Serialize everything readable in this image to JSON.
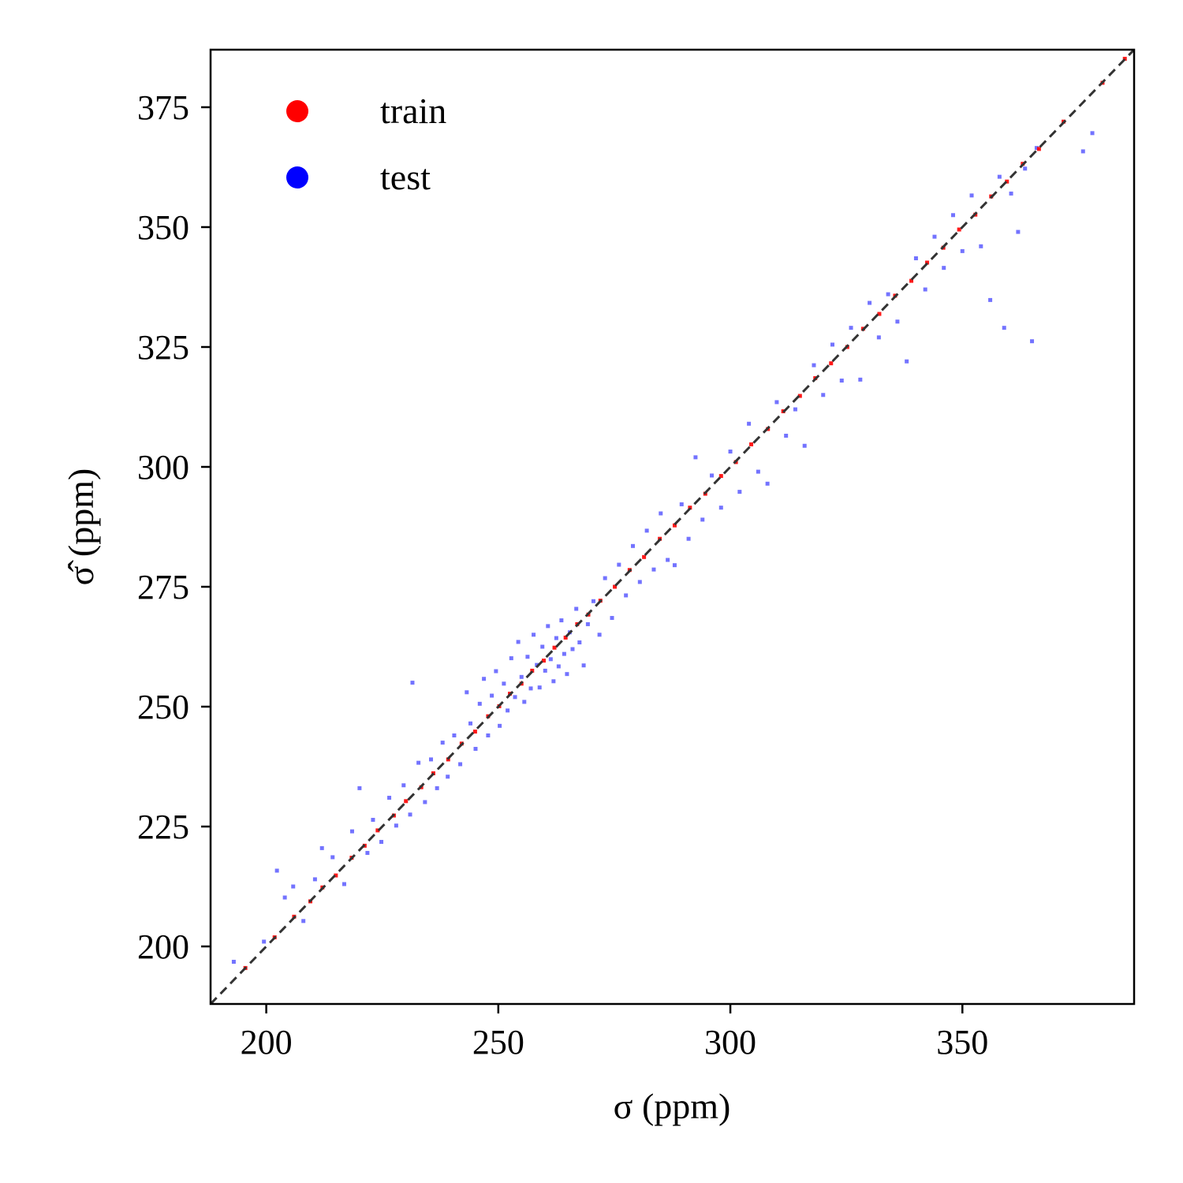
{
  "chart_data": {
    "type": "scatter",
    "title": "",
    "xlabel": "σ  (ppm)",
    "ylabel": "σ̂  (ppm)",
    "xlim": [
      188,
      387
    ],
    "ylim": [
      188,
      387
    ],
    "xticks": [
      200,
      250,
      300,
      350
    ],
    "yticks": [
      200,
      225,
      250,
      275,
      300,
      325,
      350,
      375
    ],
    "grid": false,
    "legend_position": "top-left",
    "reference_line": {
      "style": "dashed",
      "color": "#333333",
      "from": [
        188,
        188
      ],
      "to": [
        387,
        387
      ]
    },
    "series": [
      {
        "name": "train",
        "color": "#ff0000",
        "points": [
          [
            195.5,
            195.5
          ],
          [
            201.8,
            201.9
          ],
          [
            206.0,
            206.2
          ],
          [
            209.5,
            209.4
          ],
          [
            212.1,
            212.3
          ],
          [
            215.0,
            214.8
          ],
          [
            218.4,
            218.5
          ],
          [
            221.2,
            221.0
          ],
          [
            224.0,
            224.2
          ],
          [
            227.5,
            227.3
          ],
          [
            230.1,
            230.3
          ],
          [
            233.4,
            233.2
          ],
          [
            236.0,
            236.1
          ],
          [
            239.2,
            239.0
          ],
          [
            242.1,
            242.3
          ],
          [
            245.0,
            244.8
          ],
          [
            247.8,
            248.0
          ],
          [
            250.2,
            250.1
          ],
          [
            252.5,
            252.7
          ],
          [
            255.0,
            254.8
          ],
          [
            257.3,
            257.5
          ],
          [
            259.8,
            259.6
          ],
          [
            262.1,
            262.3
          ],
          [
            264.5,
            264.4
          ],
          [
            267.0,
            267.2
          ],
          [
            269.4,
            269.2
          ],
          [
            272.0,
            272.1
          ],
          [
            275.1,
            275.0
          ],
          [
            278.3,
            278.5
          ],
          [
            281.4,
            281.2
          ],
          [
            284.8,
            285.0
          ],
          [
            288.0,
            287.8
          ],
          [
            291.3,
            291.5
          ],
          [
            294.6,
            294.4
          ],
          [
            298.0,
            298.1
          ],
          [
            301.2,
            301.0
          ],
          [
            304.5,
            304.7
          ],
          [
            308.1,
            307.9
          ],
          [
            311.4,
            311.6
          ],
          [
            315.0,
            314.8
          ],
          [
            318.3,
            318.5
          ],
          [
            321.7,
            321.6
          ],
          [
            325.2,
            325.0
          ],
          [
            328.6,
            328.8
          ],
          [
            332.1,
            331.9
          ],
          [
            335.5,
            335.7
          ],
          [
            339.0,
            338.8
          ],
          [
            342.4,
            342.6
          ],
          [
            345.9,
            345.7
          ],
          [
            349.3,
            349.5
          ],
          [
            352.8,
            352.6
          ],
          [
            356.2,
            356.4
          ],
          [
            359.6,
            359.5
          ],
          [
            363.0,
            363.2
          ],
          [
            366.5,
            366.3
          ],
          [
            371.8,
            372.0
          ],
          [
            380.2,
            380.1
          ],
          [
            385.0,
            385.1
          ]
        ]
      },
      {
        "name": "test",
        "color": "#0000ff",
        "points": [
          [
            193.0,
            196.8
          ],
          [
            199.5,
            201.0
          ],
          [
            202.3,
            215.8
          ],
          [
            204.0,
            210.2
          ],
          [
            205.8,
            212.5
          ],
          [
            208.0,
            205.3
          ],
          [
            210.5,
            214.0
          ],
          [
            212.0,
            220.5
          ],
          [
            214.3,
            218.6
          ],
          [
            216.8,
            213.0
          ],
          [
            218.5,
            224.0
          ],
          [
            220.1,
            233.0
          ],
          [
            221.8,
            219.5
          ],
          [
            223.0,
            226.4
          ],
          [
            224.8,
            221.8
          ],
          [
            226.5,
            231.0
          ],
          [
            228.0,
            225.2
          ],
          [
            229.6,
            233.6
          ],
          [
            231.0,
            227.5
          ],
          [
            231.5,
            255.0
          ],
          [
            232.8,
            238.3
          ],
          [
            234.2,
            230.1
          ],
          [
            235.5,
            239.0
          ],
          [
            236.8,
            233.0
          ],
          [
            238.0,
            242.5
          ],
          [
            239.1,
            235.4
          ],
          [
            240.5,
            244.0
          ],
          [
            241.8,
            238.0
          ],
          [
            243.2,
            253.0
          ],
          [
            244.0,
            246.5
          ],
          [
            245.1,
            241.2
          ],
          [
            246.0,
            250.6
          ],
          [
            246.9,
            255.8
          ],
          [
            247.8,
            244.0
          ],
          [
            248.6,
            252.3
          ],
          [
            249.5,
            257.4
          ],
          [
            250.3,
            246.0
          ],
          [
            251.2,
            254.8
          ],
          [
            252.0,
            249.2
          ],
          [
            252.8,
            260.1
          ],
          [
            253.6,
            252.0
          ],
          [
            254.3,
            263.5
          ],
          [
            255.0,
            256.2
          ],
          [
            255.6,
            251.0
          ],
          [
            256.3,
            260.4
          ],
          [
            257.0,
            253.8
          ],
          [
            257.6,
            265.0
          ],
          [
            258.3,
            258.7
          ],
          [
            258.9,
            254.0
          ],
          [
            259.5,
            262.5
          ],
          [
            260.1,
            257.5
          ],
          [
            260.7,
            266.8
          ],
          [
            261.3,
            259.9
          ],
          [
            261.9,
            255.3
          ],
          [
            262.5,
            264.3
          ],
          [
            263.0,
            258.4
          ],
          [
            263.6,
            268.0
          ],
          [
            264.2,
            261.0
          ],
          [
            264.8,
            256.8
          ],
          [
            265.4,
            265.5
          ],
          [
            266.0,
            262.0
          ],
          [
            266.8,
            270.4
          ],
          [
            267.5,
            263.4
          ],
          [
            268.4,
            258.6
          ],
          [
            269.3,
            267.2
          ],
          [
            270.5,
            272.0
          ],
          [
            271.8,
            265.0
          ],
          [
            273.0,
            276.8
          ],
          [
            274.5,
            268.5
          ],
          [
            276.0,
            279.6
          ],
          [
            277.5,
            273.2
          ],
          [
            279.0,
            283.5
          ],
          [
            280.5,
            276.0
          ],
          [
            282.0,
            286.7
          ],
          [
            283.5,
            278.6
          ],
          [
            285.0,
            290.3
          ],
          [
            286.5,
            280.6
          ],
          [
            288.0,
            279.5
          ],
          [
            289.5,
            292.2
          ],
          [
            291.0,
            285.0
          ],
          [
            292.5,
            302.0
          ],
          [
            294.0,
            289.0
          ],
          [
            296.0,
            298.2
          ],
          [
            298.0,
            291.5
          ],
          [
            300.0,
            303.2
          ],
          [
            302.0,
            294.8
          ],
          [
            304.0,
            309.0
          ],
          [
            306.0,
            299.0
          ],
          [
            308.0,
            296.5
          ],
          [
            310.0,
            313.5
          ],
          [
            312.0,
            306.5
          ],
          [
            314.0,
            312.0
          ],
          [
            316.0,
            304.4
          ],
          [
            318.0,
            321.2
          ],
          [
            320.0,
            315.0
          ],
          [
            322.0,
            325.5
          ],
          [
            324.0,
            318.0
          ],
          [
            326.0,
            329.0
          ],
          [
            328.0,
            318.2
          ],
          [
            330.0,
            334.2
          ],
          [
            332.0,
            327.0
          ],
          [
            334.0,
            336.0
          ],
          [
            336.0,
            330.3
          ],
          [
            338.0,
            322.0
          ],
          [
            340.0,
            343.5
          ],
          [
            342.0,
            337.0
          ],
          [
            344.0,
            348.0
          ],
          [
            346.0,
            341.5
          ],
          [
            348.0,
            352.5
          ],
          [
            350.0,
            345.0
          ],
          [
            352.0,
            356.6
          ],
          [
            354.0,
            346.0
          ],
          [
            356.0,
            334.8
          ],
          [
            358.0,
            360.5
          ],
          [
            359.0,
            329.0
          ],
          [
            360.5,
            357.0
          ],
          [
            362.0,
            349.0
          ],
          [
            363.5,
            362.2
          ],
          [
            365.0,
            326.2
          ],
          [
            366.0,
            366.5
          ],
          [
            376.0,
            365.8
          ],
          [
            378.0,
            369.6
          ]
        ]
      }
    ]
  }
}
